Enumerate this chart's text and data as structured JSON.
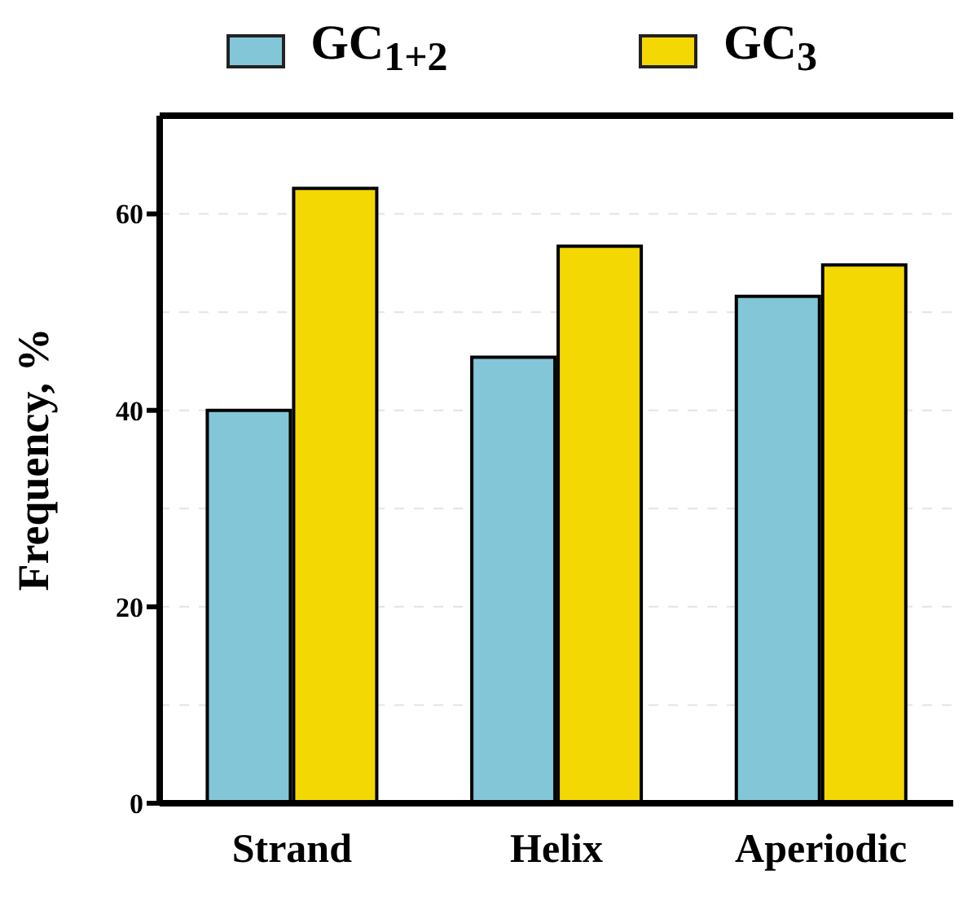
{
  "chart_data": {
    "type": "bar",
    "ylabel": "Frequency, %",
    "categories": [
      "Strand",
      "Helix",
      "Aperiodic"
    ],
    "series": [
      {
        "name": "GC$_{1+2}$",
        "color": "#82c6d8",
        "values": [
          40,
          45.4,
          51.6
        ]
      },
      {
        "name": "GC$_{3}$",
        "color": "#f4d804",
        "values": [
          62.6,
          56.7,
          54.8
        ]
      }
    ],
    "ylim": [
      0,
      70
    ],
    "yticks": [
      0,
      {
        "value": 10,
        "label": null
      },
      20,
      {
        "value": 30,
        "label": null
      },
      40,
      {
        "value": 50,
        "label": null
      },
      60
    ],
    "grid": "y",
    "legend": "top"
  }
}
